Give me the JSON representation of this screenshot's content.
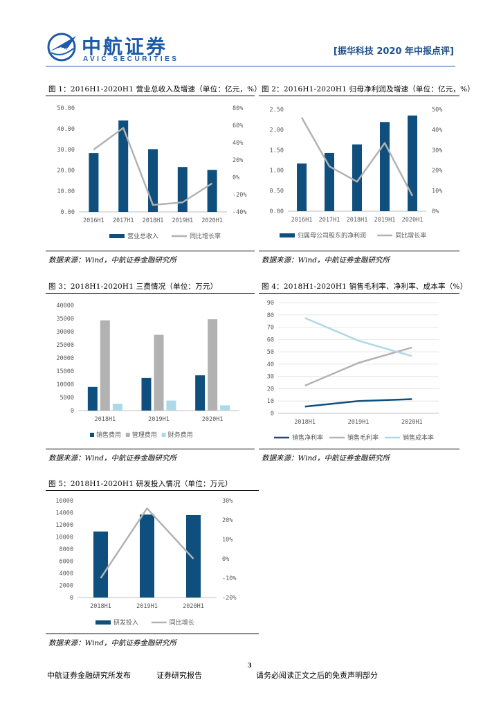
{
  "header": {
    "logo_cn": "中航证券",
    "logo_en": "AVIC SECURITIES",
    "report_tag": "[振华科技 2020 年中报点评]"
  },
  "figures": [
    {
      "title": "图 1：2016H1-2020H1 营业总收入及增速（单位：亿元，%）",
      "source": "数据来源：Wind，中航证券金融研究所"
    },
    {
      "title": "图 2：2016H1-2020H1 归母净利润及增速（单位：亿元，%）",
      "source": "数据来源：Wind，中航证券金融研究所"
    },
    {
      "title": "图 3：2018H1-2020H1 三费情况（单位：万元）",
      "source": "数据来源：Wind，中航证券金融研究所"
    },
    {
      "title": "图 4：2018H1-2020H1 销售毛利率、净利率、成本率（%）",
      "source": "数据来源：Wind，中航证券金融研究所"
    },
    {
      "title": "图 5：2018H1-2020H1 研发投入情况（单位：万元）",
      "source": "数据来源：Wind，中航证券金融研究所"
    }
  ],
  "colors": {
    "dark": "#0e4f7e",
    "gray": "#b2b2b2",
    "light": "#add8e6",
    "axis": "#bfbfbf",
    "text": "#595959"
  },
  "chart_data": [
    {
      "type": "bar+line",
      "categories": [
        "2016H1",
        "2017H1",
        "2018H1",
        "2019H1",
        "2020H1"
      ],
      "series": [
        {
          "name": "营业总收入",
          "kind": "bar",
          "axis": "left",
          "values": [
            28.3,
            44.0,
            30.2,
            21.6,
            20.2
          ]
        },
        {
          "name": "同比增长率",
          "kind": "line",
          "axis": "right",
          "values": [
            32,
            57,
            -32,
            -29,
            -7
          ]
        }
      ],
      "left_ticks": [
        "50.00",
        "40.00",
        "30.00",
        "20.00",
        "10.00",
        "0.00"
      ],
      "right_ticks": [
        "80%",
        "60%",
        "40%",
        "20%",
        "0%",
        "-20%",
        "-40%"
      ],
      "ylim": [
        0,
        50
      ],
      "y2lim": [
        -40,
        80
      ]
    },
    {
      "type": "bar+line",
      "categories": [
        "2016H1",
        "2017H1",
        "2018H1",
        "2019H1",
        "2020H1"
      ],
      "series": [
        {
          "name": "归属母公司股东的净利润",
          "kind": "bar",
          "axis": "left",
          "values": [
            1.17,
            1.43,
            1.64,
            2.19,
            2.35
          ]
        },
        {
          "name": "同比增长率",
          "kind": "line",
          "axis": "right",
          "values": [
            46,
            22,
            14.5,
            33.5,
            7.5
          ]
        }
      ],
      "left_ticks": [
        "2.50",
        "2.00",
        "1.50",
        "1.00",
        "0.50",
        "0.00"
      ],
      "right_ticks": [
        "50%",
        "40%",
        "30%",
        "20%",
        "10%",
        "0%"
      ],
      "ylim": [
        0,
        2.5
      ],
      "y2lim": [
        0,
        50
      ]
    },
    {
      "type": "bar",
      "categories": [
        "2018H1",
        "2019H1",
        "2020H1"
      ],
      "series": [
        {
          "name": "销售费用",
          "values": [
            9000,
            12400,
            13400
          ]
        },
        {
          "name": "管理费用",
          "values": [
            34300,
            28800,
            34700
          ]
        },
        {
          "name": "财务费用",
          "values": [
            2600,
            3800,
            2000
          ]
        }
      ],
      "left_ticks": [
        "40000",
        "35000",
        "30000",
        "25000",
        "20000",
        "15000",
        "10000",
        "5000",
        "0"
      ],
      "ylim": [
        0,
        40000
      ]
    },
    {
      "type": "line",
      "categories": [
        "2018H1",
        "2019H1",
        "2020H1"
      ],
      "series": [
        {
          "name": "销售净利率",
          "values": [
            5.5,
            10,
            11.5
          ]
        },
        {
          "name": "销售毛利率",
          "values": [
            22.5,
            41,
            53.5
          ]
        },
        {
          "name": "销售成本率",
          "values": [
            77.5,
            59,
            46.5
          ]
        }
      ],
      "left_ticks": [
        "90",
        "80",
        "70",
        "60",
        "50",
        "40",
        "30",
        "20",
        "10",
        "0"
      ],
      "ylim": [
        0,
        90
      ]
    },
    {
      "type": "bar+line",
      "categories": [
        "2018H1",
        "2019H1",
        "2020H1"
      ],
      "series": [
        {
          "name": "研发投入",
          "kind": "bar",
          "axis": "left",
          "values": [
            10900,
            13700,
            13600
          ]
        },
        {
          "name": "同比增长",
          "kind": "line",
          "axis": "right",
          "values": [
            -10,
            26,
            0
          ]
        }
      ],
      "left_ticks": [
        "16000",
        "14000",
        "12000",
        "10000",
        "8000",
        "6000",
        "4000",
        "2000",
        "0"
      ],
      "right_ticks": [
        "30%",
        "20%",
        "10%",
        "0%",
        "-10%",
        "-20%"
      ],
      "ylim": [
        0,
        16000
      ],
      "y2lim": [
        -20,
        30
      ]
    }
  ],
  "page_number": "3",
  "footer": {
    "publisher": "中航证券金融研究所发布",
    "report_type": "证券研究报告",
    "disclaimer": "请务必阅读正文之后的免责声明部分"
  }
}
